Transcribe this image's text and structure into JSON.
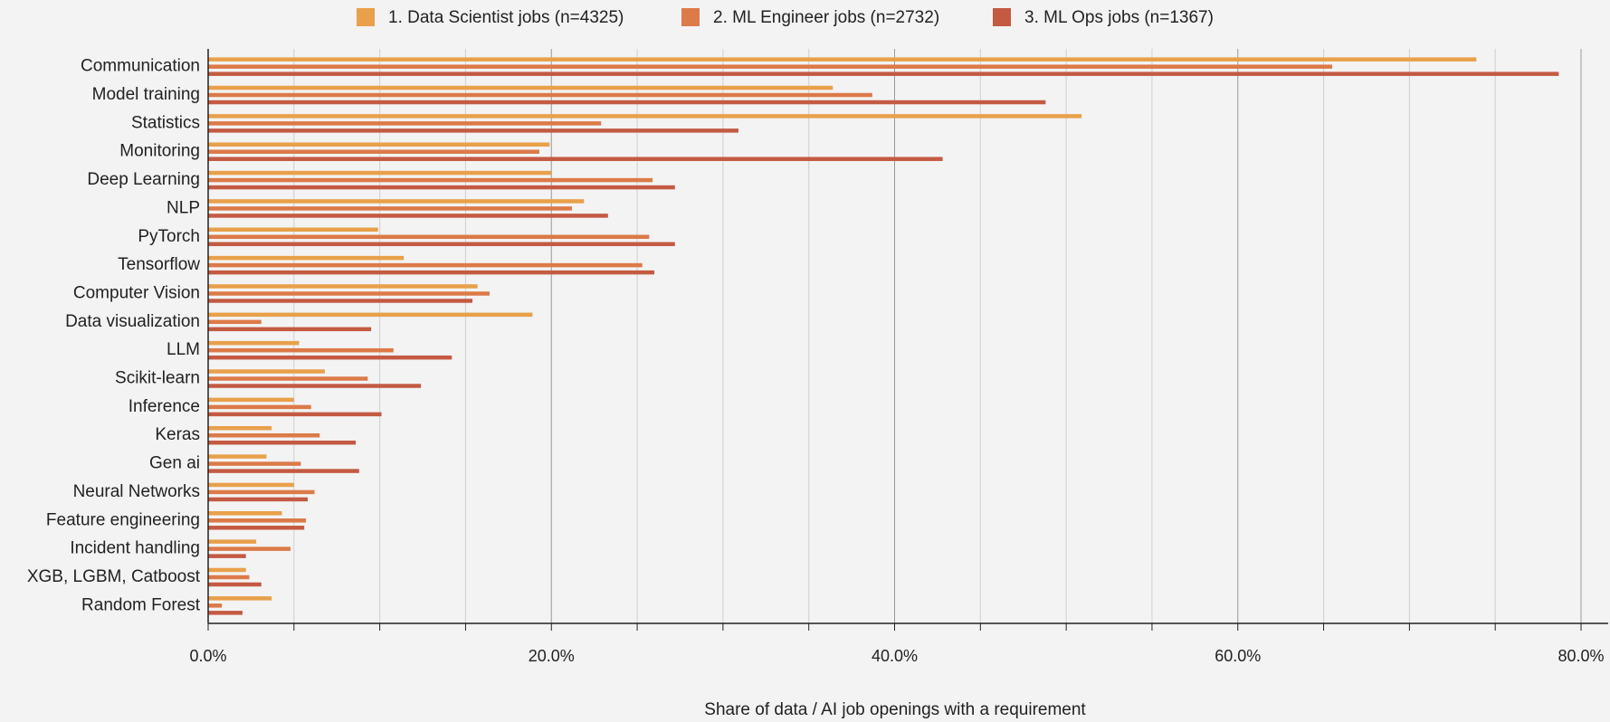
{
  "chart_data": {
    "type": "bar",
    "orientation": "horizontal",
    "x_label": "Share of data / AI job openings with a requirement",
    "categories": [
      "Communication",
      "Model training",
      "Statistics",
      "Monitoring",
      "Deep Learning",
      "NLP",
      "PyTorch",
      "Tensorflow",
      "Computer Vision",
      "Data visualization",
      "LLM",
      "Scikit-learn",
      "Inference",
      "Keras",
      "Gen ai",
      "Neural Networks",
      "Feature engineering",
      "Incident handling",
      "XGB, LGBM, Catboost",
      "Random Forest"
    ],
    "series": [
      {
        "name": "1. Data Scientist jobs (n=4325)",
        "color": "#e8a04a",
        "values": [
          73.9,
          36.4,
          50.9,
          19.9,
          20.0,
          21.9,
          9.9,
          11.4,
          15.7,
          18.9,
          5.3,
          6.8,
          5.0,
          3.7,
          3.4,
          5.0,
          4.3,
          2.8,
          2.2,
          3.7
        ]
      },
      {
        "name": "2. ML Engineer jobs (n=2732)",
        "color": "#dc7a48",
        "values": [
          65.5,
          38.7,
          22.9,
          19.3,
          25.9,
          21.2,
          25.7,
          25.3,
          16.4,
          3.1,
          10.8,
          9.3,
          6.0,
          6.5,
          5.4,
          6.2,
          5.7,
          4.8,
          2.4,
          0.8
        ]
      },
      {
        "name": "3. ML Ops jobs (n=1367)",
        "color": "#c45a42",
        "values": [
          78.7,
          48.8,
          30.9,
          42.8,
          27.2,
          23.3,
          27.2,
          26.0,
          15.4,
          9.5,
          14.2,
          12.4,
          10.1,
          8.6,
          8.8,
          5.8,
          5.6,
          2.2,
          3.1,
          2.0
        ]
      }
    ],
    "xlim": [
      0,
      80
    ],
    "xticks": [
      {
        "value": 0,
        "label": "0.0%"
      },
      {
        "value": 20,
        "label": "20.0%"
      },
      {
        "value": 40,
        "label": "40.0%"
      },
      {
        "value": 60,
        "label": "60.0%"
      },
      {
        "value": 80,
        "label": "80.0%"
      }
    ],
    "minor_xticks": [
      5,
      10,
      15,
      25,
      30,
      35,
      45,
      50,
      55,
      65,
      70,
      75
    ],
    "grid": true,
    "legend": "top"
  }
}
